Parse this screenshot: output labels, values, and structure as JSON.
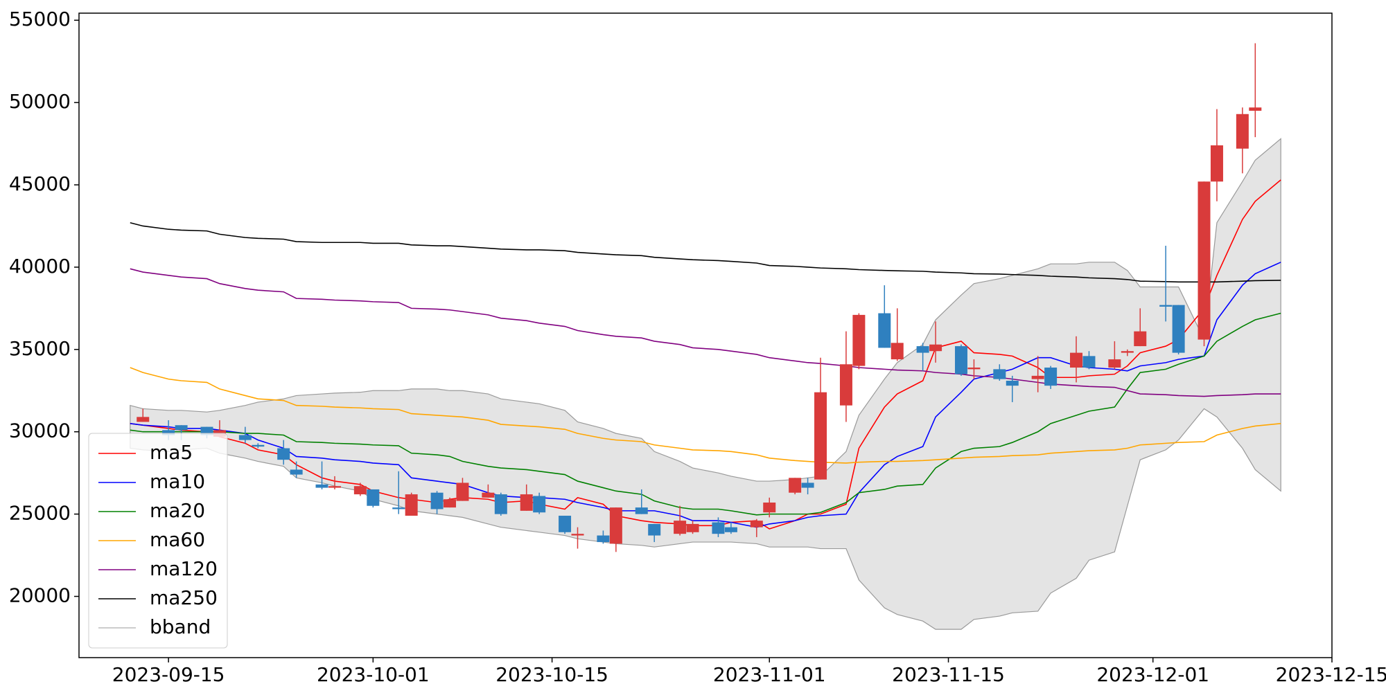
{
  "chart_data": {
    "type": "candlestick",
    "x": [
      "2023-09-12",
      "2023-09-13",
      "2023-09-15",
      "2023-09-16",
      "2023-09-18",
      "2023-09-19",
      "2023-09-21",
      "2023-09-22",
      "2023-09-24",
      "2023-09-25",
      "2023-09-27",
      "2023-09-28",
      "2023-09-30",
      "2023-10-01",
      "2023-10-03",
      "2023-10-04",
      "2023-10-06",
      "2023-10-07",
      "2023-10-08",
      "2023-10-10",
      "2023-10-11",
      "2023-10-13",
      "2023-10-14",
      "2023-10-16",
      "2023-10-17",
      "2023-10-19",
      "2023-10-20",
      "2023-10-22",
      "2023-10-23",
      "2023-10-25",
      "2023-10-26",
      "2023-10-28",
      "2023-10-29",
      "2023-10-31",
      "2023-11-01",
      "2023-11-03",
      "2023-11-04",
      "2023-11-05",
      "2023-11-07",
      "2023-11-08",
      "2023-11-10",
      "2023-11-11",
      "2023-11-13",
      "2023-11-14",
      "2023-11-16",
      "2023-11-17",
      "2023-11-19",
      "2023-11-20",
      "2023-11-22",
      "2023-11-23",
      "2023-11-25",
      "2023-11-26",
      "2023-11-28",
      "2023-11-29",
      "2023-11-30",
      "2023-12-02",
      "2023-12-03",
      "2023-12-05",
      "2023-12-06",
      "2023-12-08",
      "2023-12-09",
      "2023-12-11"
    ],
    "open": [
      null,
      30600,
      30100,
      30400,
      30300,
      29700,
      29800,
      29200,
      29000,
      27700,
      26800,
      26600,
      26200,
      26500,
      25400,
      24900,
      26300,
      25400,
      25800,
      26000,
      26200,
      25200,
      26100,
      24900,
      23700,
      23700,
      23200,
      25400,
      24400,
      23800,
      23900,
      24500,
      24200,
      24200,
      25100,
      26300,
      26900,
      27100,
      31600,
      34000,
      37200,
      34400,
      35200,
      34900,
      35200,
      33800,
      33800,
      33100,
      33200,
      33900,
      33900,
      34600,
      33900,
      34800,
      35200,
      37700,
      37700,
      35600,
      45200,
      47200,
      49500,
      null
    ],
    "high": [
      null,
      31400,
      30700,
      30400,
      30300,
      30700,
      30300,
      29300,
      29500,
      28200,
      28200,
      27300,
      26900,
      26500,
      27600,
      26300,
      26400,
      26000,
      27200,
      26800,
      26300,
      26800,
      26300,
      24900,
      24200,
      24000,
      25400,
      26500,
      24400,
      25500,
      24600,
      24800,
      24500,
      24700,
      26000,
      27200,
      27200,
      34500,
      36100,
      37200,
      38900,
      37500,
      35400,
      36700,
      35300,
      34400,
      34100,
      33400,
      34600,
      34000,
      35800,
      34900,
      35500,
      35000,
      37500,
      41300,
      37700,
      45200,
      49600,
      49700,
      53600,
      null
    ],
    "low": [
      null,
      30600,
      29500,
      29500,
      29600,
      29700,
      29300,
      29000,
      28000,
      27200,
      26500,
      26500,
      26100,
      25400,
      25000,
      24900,
      25000,
      25400,
      25800,
      26000,
      24900,
      25200,
      25000,
      23800,
      22900,
      23200,
      22700,
      25000,
      23300,
      23700,
      23800,
      23600,
      23800,
      23600,
      24800,
      26200,
      26200,
      27100,
      30600,
      33800,
      35100,
      34300,
      33700,
      34200,
      33400,
      33200,
      33100,
      31800,
      32400,
      32600,
      33000,
      33800,
      33800,
      34600,
      35200,
      36700,
      34700,
      35200,
      44000,
      45700,
      47900,
      null
    ],
    "close": [
      null,
      30900,
      29800,
      30100,
      29800,
      30100,
      29500,
      29100,
      28300,
      27400,
      26600,
      26700,
      26700,
      25500,
      25300,
      26200,
      25300,
      25900,
      26900,
      26300,
      25000,
      26200,
      25100,
      23900,
      23800,
      23300,
      25400,
      25000,
      23700,
      24600,
      24400,
      23800,
      23900,
      24600,
      25700,
      27200,
      26600,
      32400,
      34100,
      37100,
      35100,
      35400,
      34800,
      35300,
      33500,
      33900,
      33200,
      32800,
      33400,
      32800,
      34800,
      33900,
      34400,
      34900,
      36100,
      37600,
      34800,
      45200,
      47400,
      49300,
      49700,
      null
    ],
    "up_color": "#d93b3b",
    "down_color": "#2f80bf",
    "series": [
      {
        "name": "ma5",
        "color": "#ff0000",
        "values": [
          30500,
          30400,
          30200,
          30100,
          30000,
          29700,
          29300,
          28900,
          28600,
          28000,
          27200,
          27000,
          26800,
          26400,
          26000,
          25900,
          25700,
          25900,
          26000,
          25900,
          25700,
          25800,
          25600,
          25300,
          26000,
          25600,
          24900,
          24600,
          24500,
          24400,
          24300,
          24300,
          24500,
          24600,
          24100,
          24600,
          25000,
          25000,
          25600,
          29000,
          31500,
          32300,
          33100,
          35100,
          35500,
          34800,
          34700,
          34600,
          33900,
          33300,
          33300,
          33400,
          33500,
          34000,
          34800,
          35200,
          35600,
          37500,
          39500,
          42900,
          44000,
          45300
        ]
      },
      {
        "name": "ma10",
        "color": "#0000ff",
        "values": [
          30500,
          30400,
          30300,
          30200,
          30200,
          30100,
          29900,
          29500,
          29000,
          28500,
          28400,
          28300,
          28200,
          28100,
          28000,
          27200,
          27000,
          26900,
          26800,
          26300,
          26100,
          26000,
          26000,
          25900,
          25700,
          25400,
          25200,
          25200,
          25200,
          24900,
          24600,
          24600,
          24500,
          24200,
          24400,
          24600,
          24800,
          24900,
          25000,
          26300,
          28000,
          28500,
          29100,
          30900,
          32400,
          33200,
          33600,
          33800,
          34500,
          34500,
          34000,
          33900,
          33800,
          33700,
          34000,
          34200,
          34400,
          34600,
          36800,
          38900,
          39600,
          40300
        ]
      },
      {
        "name": "ma20",
        "color": "#008000",
        "values": [
          30100,
          30000,
          30000,
          30000,
          30000,
          30000,
          29900,
          29900,
          29800,
          29400,
          29350,
          29300,
          29250,
          29200,
          29150,
          28700,
          28600,
          28500,
          28200,
          27900,
          27800,
          27700,
          27600,
          27400,
          27000,
          26600,
          26400,
          26200,
          25800,
          25400,
          25300,
          25300,
          25200,
          24950,
          25000,
          25000,
          25000,
          25100,
          25700,
          26300,
          26500,
          26700,
          26800,
          27800,
          28800,
          29000,
          29100,
          29350,
          30000,
          30500,
          31000,
          31250,
          31500,
          32600,
          33600,
          33800,
          34100,
          34600,
          35500,
          36400,
          36800,
          37200
        ]
      },
      {
        "name": "ma60",
        "color": "#ffa500",
        "values": [
          33900,
          33600,
          33200,
          33100,
          33000,
          32600,
          32200,
          32000,
          31900,
          31600,
          31550,
          31500,
          31450,
          31400,
          31350,
          31100,
          31000,
          30950,
          30900,
          30700,
          30450,
          30350,
          30300,
          30150,
          29900,
          29600,
          29500,
          29400,
          29200,
          29000,
          28900,
          28850,
          28800,
          28600,
          28400,
          28250,
          28200,
          28150,
          28100,
          28150,
          28200,
          28200,
          28250,
          28300,
          28400,
          28450,
          28500,
          28550,
          28600,
          28700,
          28800,
          28850,
          28900,
          29000,
          29200,
          29300,
          29350,
          29400,
          29800,
          30200,
          30350,
          30500
        ]
      },
      {
        "name": "ma120",
        "color": "#800080",
        "values": [
          39900,
          39700,
          39500,
          39400,
          39300,
          39000,
          38700,
          38600,
          38500,
          38100,
          38050,
          38000,
          37950,
          37900,
          37850,
          37500,
          37450,
          37400,
          37300,
          37100,
          36900,
          36750,
          36600,
          36400,
          36150,
          35900,
          35800,
          35700,
          35500,
          35300,
          35100,
          35000,
          34900,
          34700,
          34500,
          34300,
          34200,
          34150,
          34000,
          33900,
          33800,
          33750,
          33700,
          33600,
          33500,
          33400,
          33300,
          33200,
          33000,
          32900,
          32800,
          32750,
          32700,
          32500,
          32300,
          32250,
          32200,
          32150,
          32200,
          32250,
          32300,
          32300
        ]
      },
      {
        "name": "ma250",
        "color": "#000000",
        "values": [
          42700,
          42500,
          42300,
          42250,
          42200,
          42000,
          41800,
          41750,
          41700,
          41550,
          41500,
          41500,
          41500,
          41450,
          41450,
          41350,
          41300,
          41300,
          41250,
          41150,
          41100,
          41050,
          41050,
          41000,
          40900,
          40800,
          40750,
          40700,
          40600,
          40500,
          40450,
          40400,
          40350,
          40250,
          40100,
          40050,
          40000,
          39950,
          39900,
          39850,
          39800,
          39780,
          39750,
          39700,
          39650,
          39600,
          39580,
          39550,
          39500,
          39450,
          39400,
          39350,
          39300,
          39250,
          39150,
          39120,
          39100,
          39100,
          39100,
          39150,
          39180,
          39200
        ]
      }
    ],
    "band": {
      "name": "bband",
      "color": "#999999",
      "fill": "#e4e4e4",
      "upper": [
        31600,
        31400,
        31300,
        31300,
        31200,
        31300,
        31600,
        31800,
        32000,
        32200,
        32300,
        32350,
        32400,
        32500,
        32500,
        32600,
        32600,
        32500,
        32500,
        32300,
        32000,
        31800,
        31700,
        31300,
        30600,
        30200,
        29900,
        29600,
        28800,
        28200,
        27800,
        27500,
        27300,
        27000,
        27000,
        27100,
        27200,
        27300,
        28800,
        31000,
        33200,
        34200,
        35300,
        36800,
        38300,
        39000,
        39300,
        39500,
        39900,
        40200,
        40200,
        40300,
        40300,
        39800,
        38800,
        38800,
        38800,
        35600,
        42700,
        45200,
        46500,
        47800
      ],
      "lower": [
        29000,
        28900,
        28800,
        28900,
        29000,
        28700,
        28400,
        28200,
        27900,
        27200,
        26900,
        26700,
        26400,
        25900,
        25500,
        25200,
        25000,
        24900,
        24800,
        24400,
        24200,
        24000,
        23900,
        23700,
        23500,
        23300,
        23200,
        23100,
        23000,
        23200,
        23300,
        23300,
        23300,
        23200,
        23000,
        23000,
        23000,
        22900,
        22900,
        21000,
        19300,
        18900,
        18500,
        18000,
        18000,
        18600,
        18800,
        19000,
        19100,
        20200,
        21100,
        22200,
        22700,
        25500,
        28300,
        28900,
        29500,
        31400,
        30900,
        29000,
        27700,
        26400
      ]
    },
    "xlim": [
      "2023-09-08",
      "2023-12-15"
    ],
    "xticks": [
      "2023-09-15",
      "2023-10-01",
      "2023-10-15",
      "2023-11-01",
      "2023-11-15",
      "2023-12-01",
      "2023-12-15"
    ],
    "ylim": [
      16280,
      55430
    ],
    "yticks": [
      20000,
      25000,
      30000,
      35000,
      40000,
      45000,
      50000,
      55000
    ],
    "legend": "lower left"
  }
}
